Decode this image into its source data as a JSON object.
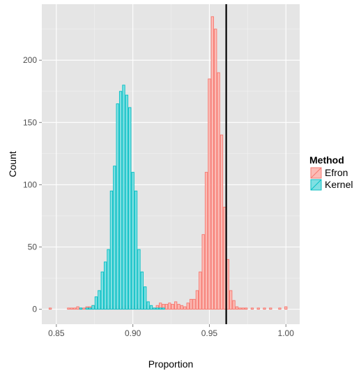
{
  "chart_data": {
    "type": "histogram",
    "title": "",
    "xlabel": "Proportion",
    "ylabel": "Count",
    "xlim": [
      0.8405,
      1.009
    ],
    "ylim": [
      -12,
      245
    ],
    "x_ticks": [
      0.85,
      0.9,
      0.95,
      1.0
    ],
    "x_tick_labels": [
      "0.85",
      "0.90",
      "0.95",
      "1.00"
    ],
    "y_ticks": [
      0,
      50,
      100,
      150,
      200
    ],
    "y_tick_labels": [
      "0",
      "50",
      "100",
      "150",
      "200"
    ],
    "bin_width": 0.002,
    "reference_line_x": 0.961,
    "grid": true,
    "legend": {
      "title": "Method",
      "placement": "right",
      "entries": [
        "Efron",
        "Kernel"
      ]
    },
    "series": [
      {
        "name": "Efron",
        "color": "#f8766d",
        "fill": "#fbbcb6",
        "bins": [
          [
            0.846,
            1
          ],
          [
            0.858,
            1
          ],
          [
            0.86,
            1
          ],
          [
            0.862,
            1
          ],
          [
            0.864,
            2
          ],
          [
            0.866,
            1
          ],
          [
            0.868,
            1
          ],
          [
            0.87,
            2
          ],
          [
            0.872,
            2
          ],
          [
            0.874,
            3
          ],
          [
            0.876,
            1
          ],
          [
            0.878,
            1
          ],
          [
            0.88,
            2
          ],
          [
            0.882,
            3
          ],
          [
            0.884,
            2
          ],
          [
            0.886,
            3
          ],
          [
            0.888,
            2
          ],
          [
            0.89,
            3
          ],
          [
            0.892,
            2
          ],
          [
            0.894,
            2
          ],
          [
            0.896,
            3
          ],
          [
            0.898,
            3
          ],
          [
            0.9,
            2
          ],
          [
            0.902,
            3
          ],
          [
            0.904,
            4
          ],
          [
            0.906,
            2
          ],
          [
            0.908,
            3
          ],
          [
            0.91,
            2
          ],
          [
            0.912,
            2
          ],
          [
            0.914,
            1
          ],
          [
            0.916,
            3
          ],
          [
            0.918,
            5
          ],
          [
            0.92,
            4
          ],
          [
            0.922,
            4
          ],
          [
            0.924,
            5
          ],
          [
            0.926,
            4
          ],
          [
            0.928,
            6
          ],
          [
            0.93,
            4
          ],
          [
            0.932,
            3
          ],
          [
            0.934,
            2
          ],
          [
            0.936,
            5
          ],
          [
            0.938,
            8
          ],
          [
            0.94,
            8
          ],
          [
            0.942,
            15
          ],
          [
            0.944,
            30
          ],
          [
            0.946,
            60
          ],
          [
            0.948,
            110
          ],
          [
            0.95,
            185
          ],
          [
            0.952,
            235
          ],
          [
            0.954,
            225
          ],
          [
            0.956,
            190
          ],
          [
            0.958,
            140
          ],
          [
            0.96,
            82
          ],
          [
            0.962,
            40
          ],
          [
            0.964,
            15
          ],
          [
            0.966,
            7
          ],
          [
            0.968,
            2
          ],
          [
            0.97,
            1
          ],
          [
            0.972,
            1
          ],
          [
            0.974,
            1
          ],
          [
            0.978,
            1
          ],
          [
            0.982,
            1
          ],
          [
            0.986,
            1
          ],
          [
            0.99,
            1
          ],
          [
            0.996,
            1
          ],
          [
            1.0,
            2
          ]
        ]
      },
      {
        "name": "Kernel",
        "color": "#00bfc4",
        "fill": "#80dfe2",
        "bins": [
          [
            0.866,
            1
          ],
          [
            0.87,
            1
          ],
          [
            0.872,
            1
          ],
          [
            0.874,
            3
          ],
          [
            0.876,
            10
          ],
          [
            0.878,
            15
          ],
          [
            0.88,
            30
          ],
          [
            0.882,
            38
          ],
          [
            0.884,
            48
          ],
          [
            0.886,
            95
          ],
          [
            0.888,
            115
          ],
          [
            0.89,
            165
          ],
          [
            0.892,
            175
          ],
          [
            0.894,
            180
          ],
          [
            0.896,
            172
          ],
          [
            0.898,
            162
          ],
          [
            0.9,
            110
          ],
          [
            0.902,
            95
          ],
          [
            0.904,
            48
          ],
          [
            0.906,
            30
          ],
          [
            0.908,
            18
          ],
          [
            0.91,
            6
          ],
          [
            0.912,
            3
          ],
          [
            0.914,
            1
          ],
          [
            0.916,
            1
          ],
          [
            0.918,
            1
          ],
          [
            0.92,
            1
          ]
        ]
      }
    ]
  }
}
